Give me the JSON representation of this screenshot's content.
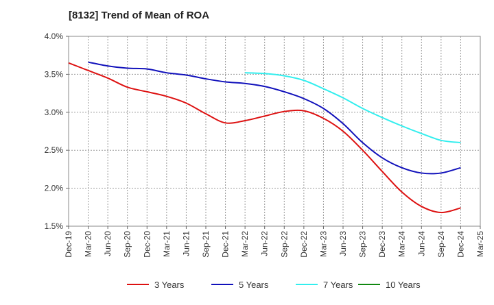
{
  "chart_data": {
    "type": "line",
    "title": "[8132]  Trend of Mean of ROA",
    "xlabel": "",
    "ylabel": "",
    "ylim": [
      1.5,
      4.0
    ],
    "yticks": [
      1.5,
      2.0,
      2.5,
      3.0,
      3.5,
      4.0
    ],
    "ytick_labels": [
      "1.5%",
      "2.0%",
      "2.5%",
      "3.0%",
      "3.5%",
      "4.0%"
    ],
    "categories": [
      "Dec-19",
      "Mar-20",
      "Jun-20",
      "Sep-20",
      "Dec-20",
      "Mar-21",
      "Jun-21",
      "Sep-21",
      "Dec-21",
      "Mar-22",
      "Jun-22",
      "Sep-22",
      "Dec-22",
      "Mar-23",
      "Jun-23",
      "Sep-23",
      "Dec-23",
      "Mar-24",
      "Jun-24",
      "Sep-24",
      "Dec-24",
      "Mar-25"
    ],
    "grid": true,
    "legend_position": "bottom",
    "series": [
      {
        "name": "3 Years",
        "color": "#dd1111",
        "values": [
          3.65,
          3.55,
          3.45,
          3.33,
          3.27,
          3.21,
          3.12,
          2.98,
          2.86,
          2.89,
          2.95,
          3.01,
          3.02,
          2.92,
          2.75,
          2.5,
          2.22,
          1.95,
          1.76,
          1.68,
          1.74,
          null
        ]
      },
      {
        "name": "5 Years",
        "color": "#1111bb",
        "values": [
          null,
          3.66,
          3.61,
          3.58,
          3.57,
          3.52,
          3.49,
          3.44,
          3.4,
          3.38,
          3.34,
          3.27,
          3.18,
          3.05,
          2.85,
          2.6,
          2.4,
          2.27,
          2.2,
          2.2,
          2.27,
          null
        ]
      },
      {
        "name": "7 Years",
        "color": "#33eeee",
        "values": [
          null,
          null,
          null,
          null,
          null,
          null,
          null,
          null,
          null,
          3.52,
          3.51,
          3.48,
          3.42,
          3.31,
          3.19,
          3.05,
          2.93,
          2.82,
          2.72,
          2.63,
          2.6,
          null
        ]
      },
      {
        "name": "10 Years",
        "color": "#118811",
        "values": [
          null,
          null,
          null,
          null,
          null,
          null,
          null,
          null,
          null,
          null,
          null,
          null,
          null,
          null,
          null,
          null,
          null,
          null,
          null,
          null,
          null,
          null
        ]
      }
    ]
  }
}
